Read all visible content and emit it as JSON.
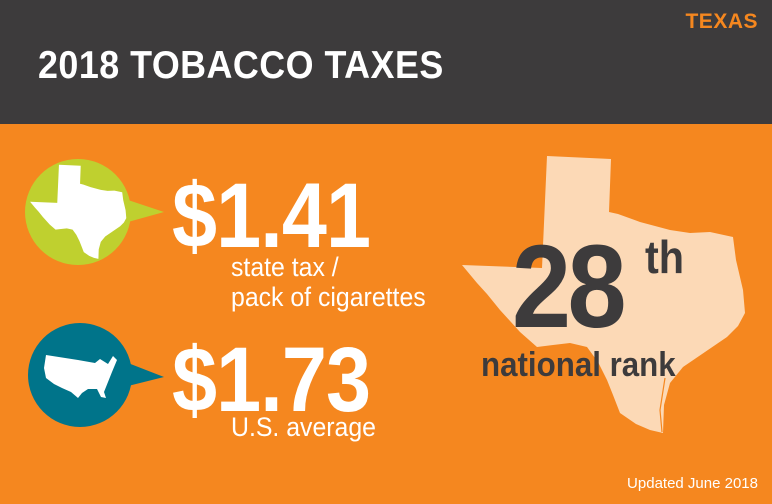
{
  "header": {
    "state": "TEXAS",
    "title": "2018 TOBACCO TAXES"
  },
  "state_tax": {
    "value": "$1.41",
    "label_line1": "state tax /",
    "label_line2": "pack of cigarettes",
    "icon": "texas-map-icon",
    "color": "#bfd02f"
  },
  "us_average": {
    "value": "$1.73",
    "label": "U.S. average",
    "icon": "usa-map-icon",
    "color": "#00748a"
  },
  "rank": {
    "number": "28",
    "suffix": "th",
    "label": "national rank"
  },
  "footer": {
    "updated": "Updated June 2018"
  },
  "colors": {
    "background": "#f5871f",
    "header": "#3d3b3c",
    "map": "#fcd9b6"
  }
}
